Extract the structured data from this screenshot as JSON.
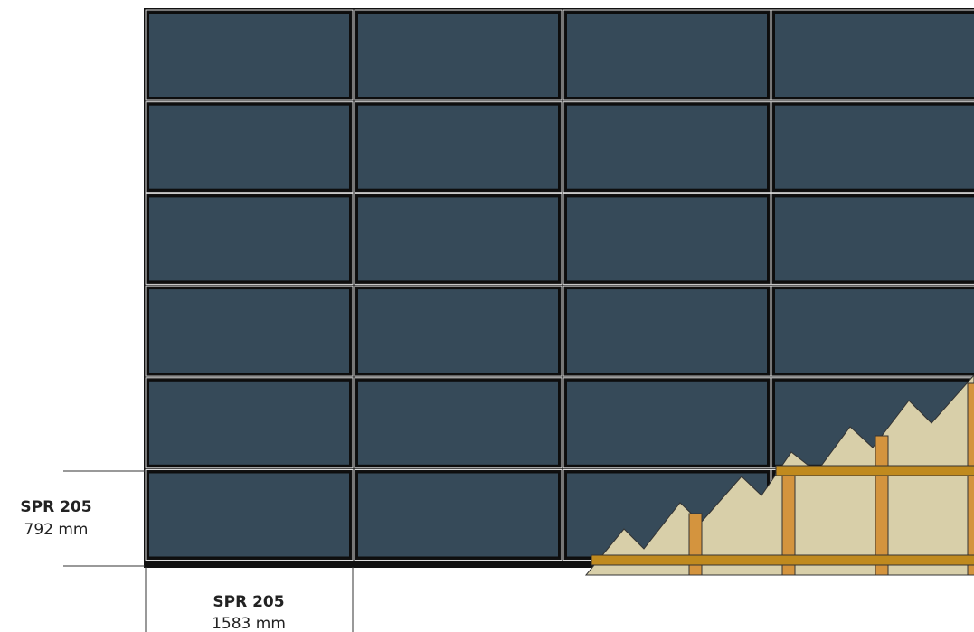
{
  "height_label": {
    "model": "SPR 205",
    "dimension": "792 mm"
  },
  "width_label": {
    "model": "SPR 205",
    "dimension": "1583 mm"
  }
}
